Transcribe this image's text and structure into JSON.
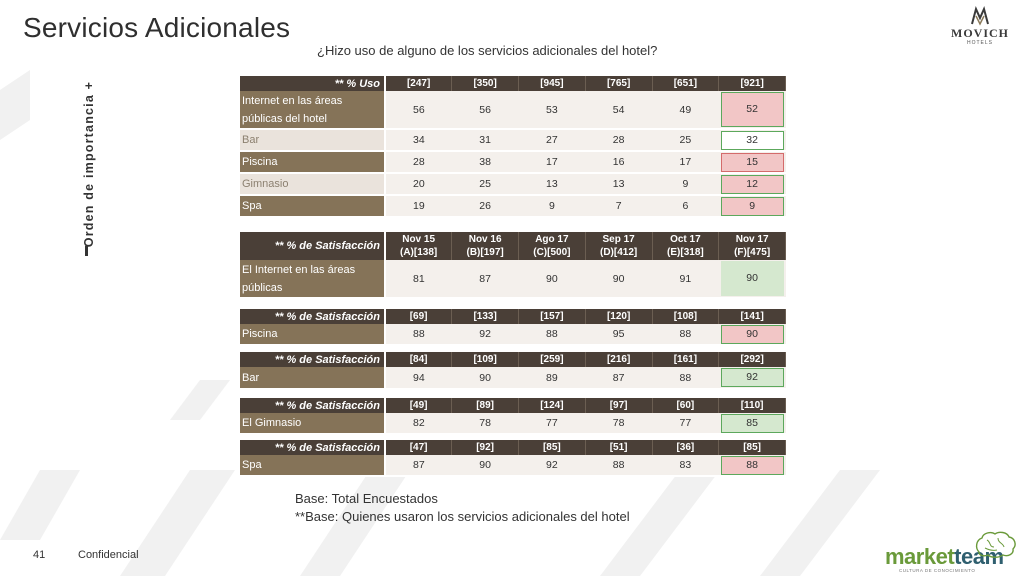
{
  "title": "Servicios Adicionales",
  "logo": {
    "brand": "MOVICH",
    "sub": "HOTELS"
  },
  "question": "¿Hizo uso de alguno de los servicios adicionales del hotel?",
  "vertical_label": "Orden de importancia +",
  "usage_table": {
    "header_label": "** % Uso",
    "bases": [
      "[247]",
      "[350]",
      "[945]",
      "[765]",
      "[651]",
      "[921]"
    ],
    "rows": [
      {
        "label": "Internet en las áreas públicas del hotel",
        "values": [
          "56",
          "56",
          "53",
          "54",
          "49",
          "52"
        ],
        "highlight": "red"
      },
      {
        "label": "Bar",
        "values": [
          "34",
          "31",
          "27",
          "28",
          "25",
          "32"
        ],
        "highlight": "green"
      },
      {
        "label": "Piscina",
        "values": [
          "28",
          "38",
          "17",
          "16",
          "17",
          "15"
        ],
        "highlight": "red"
      },
      {
        "label": "Gimnasio",
        "values": [
          "20",
          "25",
          "13",
          "13",
          "9",
          "12"
        ],
        "highlight": "red"
      },
      {
        "label": "Spa",
        "values": [
          "19",
          "26",
          "9",
          "7",
          "6",
          "9"
        ],
        "highlight": "red"
      }
    ]
  },
  "satisfaction_header": {
    "label": "** % de Satisfacción",
    "periods": [
      {
        "line1": "Nov 15",
        "line2": "(A)[138]"
      },
      {
        "line1": "Nov 16",
        "line2": "(B)[197]"
      },
      {
        "line1": "Ago 17",
        "line2": "(C)[500]"
      },
      {
        "line1": "Sep 17",
        "line2": "(D)[412]"
      },
      {
        "line1": "Oct 17",
        "line2": "(E)[318]"
      },
      {
        "line1": "Nov 17",
        "line2": "(F)[475]"
      }
    ]
  },
  "satisfaction_blocks": [
    {
      "label": "El Internet en las áreas públicas",
      "values": [
        "81",
        "87",
        "90",
        "90",
        "91",
        "90"
      ]
    },
    {
      "header_label": "** % de Satisfacción",
      "bases": [
        "[69]",
        "[133]",
        "[157]",
        "[120]",
        "[108]",
        "[141]"
      ],
      "label": "Piscina",
      "values": [
        "88",
        "92",
        "88",
        "95",
        "88",
        "90"
      ]
    },
    {
      "header_label": "** % de Satisfacción",
      "bases": [
        "[84]",
        "[109]",
        "[259]",
        "[216]",
        "[161]",
        "[292]"
      ],
      "label": "Bar",
      "values": [
        "94",
        "90",
        "89",
        "87",
        "88",
        "92"
      ]
    },
    {
      "header_label": "** % de Satisfacción",
      "bases": [
        "[49]",
        "[89]",
        "[124]",
        "[97]",
        "[60]",
        "[110]"
      ],
      "label": "El Gimnasio",
      "values": [
        "82",
        "78",
        "77",
        "78",
        "77",
        "85"
      ]
    },
    {
      "header_label": "** % de Satisfacción",
      "bases": [
        "[47]",
        "[92]",
        "[85]",
        "[51]",
        "[36]",
        "[85]"
      ],
      "label": "Spa",
      "values": [
        "87",
        "90",
        "92",
        "88",
        "83",
        "88"
      ]
    }
  ],
  "footnotes": {
    "base1": "Base: Total Encuestados",
    "base2": "**Base: Quienes usaron los servicios adicionales del hotel"
  },
  "footer": {
    "page_number": "41",
    "confidential": "Confidencial"
  },
  "brand_footer": {
    "word_a": "market",
    "word_b": "team",
    "tagline": "CULTURA DE CONOCIMIENTO"
  },
  "colors": {
    "header_dark": "#4a3f37",
    "label_dark": "#857358",
    "label_light": "#eae3dc",
    "cell_bg": "#f4f0ec",
    "highlight_red": "#f2c6c6",
    "highlight_green": "#d5e8cf"
  }
}
